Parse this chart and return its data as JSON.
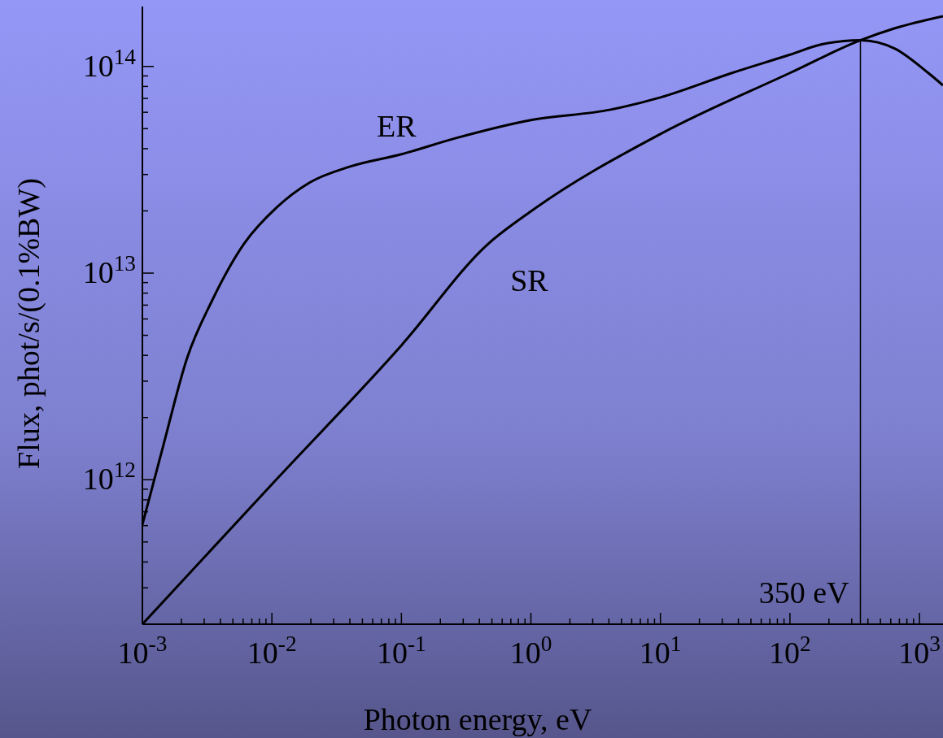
{
  "chart_data": {
    "type": "line",
    "xlabel": "Photon energy, eV",
    "ylabel": "Flux, phot/s/(0.1%BW)",
    "log": "xy",
    "grid": false,
    "xlim": [
      0.001,
      1520
    ],
    "ylim": [
      200000000000.0,
      195000000000000.0
    ],
    "xticks": [
      {
        "value": 0.001,
        "label": "10$^{-3}$"
      },
      {
        "value": 0.002,
        "label": null
      },
      {
        "value": 0.003,
        "label": null
      },
      {
        "value": 0.004,
        "label": null
      },
      {
        "value": 0.005,
        "label": null
      },
      {
        "value": 0.006,
        "label": null
      },
      {
        "value": 0.007,
        "label": null
      },
      {
        "value": 0.008,
        "label": null
      },
      {
        "value": 0.009,
        "label": null
      },
      {
        "value": 0.01,
        "label": "10$^{-2}$"
      },
      {
        "value": 0.02,
        "label": null
      },
      {
        "value": 0.03,
        "label": null
      },
      {
        "value": 0.04,
        "label": null
      },
      {
        "value": 0.05,
        "label": null
      },
      {
        "value": 0.06,
        "label": null
      },
      {
        "value": 0.07,
        "label": null
      },
      {
        "value": 0.08,
        "label": null
      },
      {
        "value": 0.09,
        "label": null
      },
      {
        "value": 0.1,
        "label": "10$^{-1}$"
      },
      {
        "value": 0.2,
        "label": null
      },
      {
        "value": 0.3,
        "label": null
      },
      {
        "value": 0.4,
        "label": null
      },
      {
        "value": 0.5,
        "label": null
      },
      {
        "value": 0.6,
        "label": null
      },
      {
        "value": 0.7,
        "label": null
      },
      {
        "value": 0.8,
        "label": null
      },
      {
        "value": 0.9,
        "label": null
      },
      {
        "value": 1,
        "label": "10$^{0}$"
      },
      {
        "value": 2,
        "label": null
      },
      {
        "value": 3,
        "label": null
      },
      {
        "value": 4,
        "label": null
      },
      {
        "value": 5,
        "label": null
      },
      {
        "value": 6,
        "label": null
      },
      {
        "value": 7,
        "label": null
      },
      {
        "value": 8,
        "label": null
      },
      {
        "value": 9,
        "label": null
      },
      {
        "value": 10,
        "label": "10$^{1}$"
      },
      {
        "value": 20,
        "label": null
      },
      {
        "value": 30,
        "label": null
      },
      {
        "value": 40,
        "label": null
      },
      {
        "value": 50,
        "label": null
      },
      {
        "value": 60,
        "label": null
      },
      {
        "value": 70,
        "label": null
      },
      {
        "value": 80,
        "label": null
      },
      {
        "value": 90,
        "label": null
      },
      {
        "value": 100,
        "label": "10$^{2}$"
      },
      {
        "value": 200,
        "label": null
      },
      {
        "value": 300,
        "label": null
      },
      {
        "value": 400,
        "label": null
      },
      {
        "value": 500,
        "label": null
      },
      {
        "value": 600,
        "label": null
      },
      {
        "value": 700,
        "label": null
      },
      {
        "value": 800,
        "label": null
      },
      {
        "value": 900,
        "label": null
      },
      {
        "value": 1000,
        "label": "10$^{3}$"
      }
    ],
    "yticks": [
      {
        "value": 300000000000.0,
        "label": null
      },
      {
        "value": 400000000000.0,
        "label": null
      },
      {
        "value": 500000000000.0,
        "label": null
      },
      {
        "value": 600000000000.0,
        "label": null
      },
      {
        "value": 700000000000.0,
        "label": null
      },
      {
        "value": 800000000000.0,
        "label": null
      },
      {
        "value": 900000000000.0,
        "label": null
      },
      {
        "value": 1000000000000.0,
        "label": "10$^{12}$"
      },
      {
        "value": 2000000000000.0,
        "label": null
      },
      {
        "value": 3000000000000.0,
        "label": null
      },
      {
        "value": 4000000000000.0,
        "label": null
      },
      {
        "value": 5000000000000.0,
        "label": null
      },
      {
        "value": 6000000000000.0,
        "label": null
      },
      {
        "value": 7000000000000.0,
        "label": null
      },
      {
        "value": 8000000000000.0,
        "label": null
      },
      {
        "value": 9000000000000.0,
        "label": null
      },
      {
        "value": 10000000000000.0,
        "label": "10$^{13}$"
      },
      {
        "value": 20000000000000.0,
        "label": null
      },
      {
        "value": 30000000000000.0,
        "label": null
      },
      {
        "value": 40000000000000.0,
        "label": null
      },
      {
        "value": 50000000000000.0,
        "label": null
      },
      {
        "value": 60000000000000.0,
        "label": null
      },
      {
        "value": 70000000000000.0,
        "label": null
      },
      {
        "value": 80000000000000.0,
        "label": null
      },
      {
        "value": 90000000000000.0,
        "label": null
      },
      {
        "value": 100000000000000.0,
        "label": "10$^{14}$"
      }
    ],
    "series": [
      {
        "name": "ER",
        "color": "#000000",
        "x": [
          0.001,
          0.00144,
          0.00222,
          0.00343,
          0.00611,
          0.0109,
          0.0195,
          0.0402,
          0.1,
          0.264,
          1,
          4.13,
          10,
          35.7,
          100,
          176,
          352,
          646,
          1170,
          1520
        ],
        "values": [
          607000000000.0,
          1440000000000.0,
          3900000000000.0,
          7300000000000.0,
          13900000000000.0,
          20800000000000.0,
          27400000000000.0,
          32800000000000.0,
          37600000000000.0,
          45000000000000.0,
          55000000000000.0,
          61800000000000.0,
          70800000000000.0,
          93000000000000.0,
          114000000000000.0,
          128000000000000.0,
          134000000000000.0,
          122000000000000.0,
          93000000000000.0,
          81000000000000.0
        ]
      },
      {
        "name": "SR",
        "color": "#000000",
        "x": [
          0.001,
          0.00998,
          0.1,
          0.471,
          1,
          10,
          100,
          352,
          646,
          1520
        ],
        "values": [
          200000000000.0,
          950000000000.0,
          4470000000000.0,
          13900000000000.0,
          19900000000000.0,
          47100000000000.0,
          93000000000000.0,
          134000000000000.0,
          153000000000000.0,
          175000000000000.0
        ]
      }
    ],
    "ref_lines": [
      {
        "axis": "x",
        "value": 350,
        "label": "350 eV",
        "color": "#000000"
      }
    ]
  }
}
